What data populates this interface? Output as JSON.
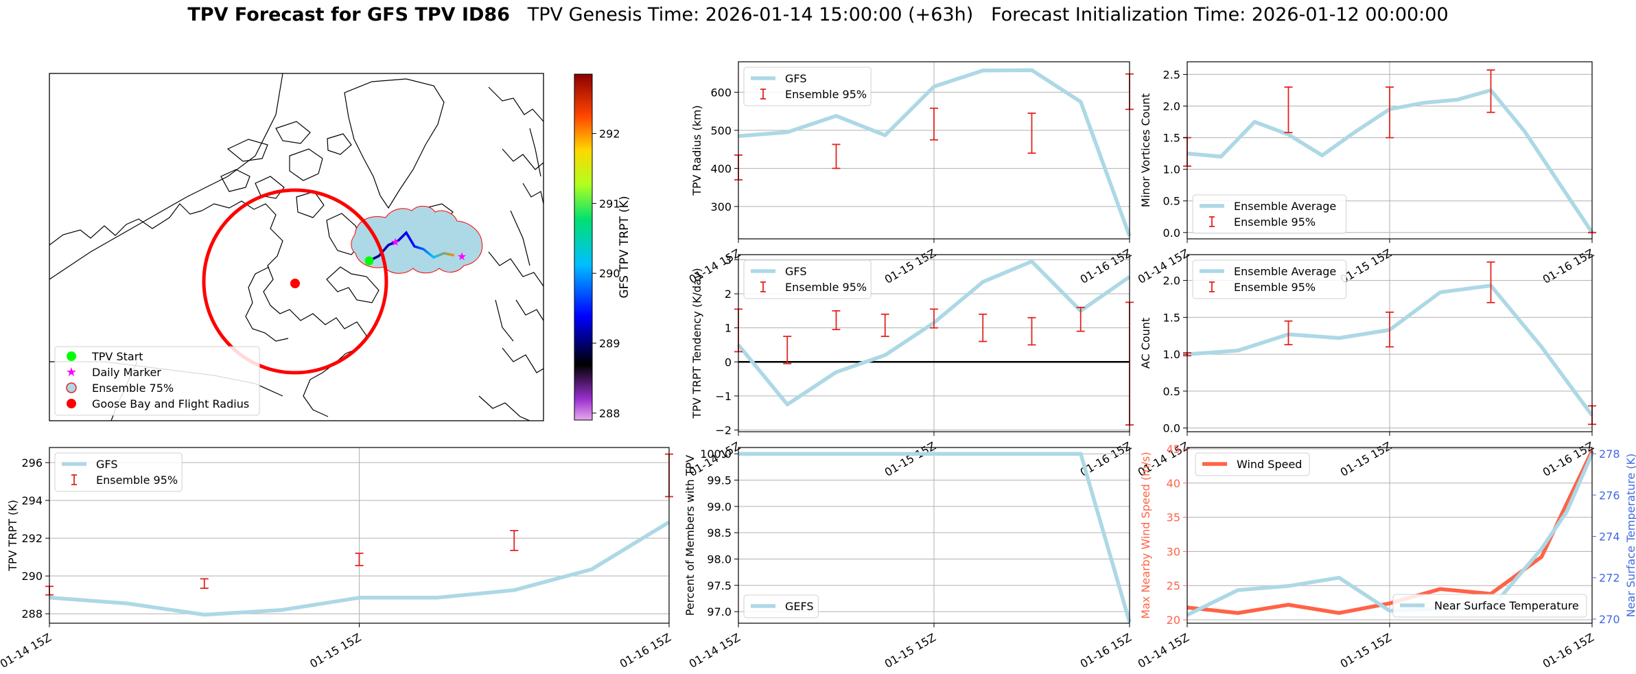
{
  "title": {
    "bold": "TPV Forecast for GFS TPV ID86",
    "genesis": "TPV Genesis Time: 2026-01-14 15:00:00 (+63h)",
    "init": "Forecast Initialization Time: 2026-01-12 00:00:00"
  },
  "colors": {
    "gfs": "#add8e6",
    "ensemble": "#e0251f",
    "wind": "#ff6347",
    "temp_axis": "#4169e1",
    "grid": "#b0b0b0"
  },
  "map": {
    "legend": [
      "TPV Start",
      "Daily Marker",
      "Ensemble 75%",
      "Goose Bay and Flight Radius"
    ],
    "legend_icons": [
      "green-circle",
      "magenta-star",
      "lightblue-circle-red-edge",
      "red-circle"
    ],
    "colorbar_label": "GFS TPV TRPT (K)",
    "colorbar_ticks": [
      288,
      289,
      290,
      291,
      292
    ],
    "colorbar_range": [
      287.9,
      292.85
    ]
  },
  "chart_data": [
    {
      "id": "radius",
      "type": "line",
      "ylabel": "TPV Radius (km)",
      "ylim": [
        215,
        680
      ],
      "yticks": [
        300,
        400,
        500,
        600
      ],
      "xlim": [
        0,
        48
      ],
      "xticks": [
        0,
        24,
        48
      ],
      "xticklabels": [
        "01-14 15Z",
        "01-15 15Z",
        "01-16 15Z"
      ],
      "grid": true,
      "legend_position": "upper-left",
      "series": [
        {
          "name": "GFS",
          "x": [
            0,
            6,
            12,
            18,
            24,
            30,
            36,
            42,
            48
          ],
          "values": [
            485,
            495,
            538,
            487,
            615,
            657,
            658,
            575,
            222
          ]
        }
      ],
      "errorbars": {
        "name": "Ensemble 95%",
        "x": [
          0,
          12,
          24,
          36,
          48
        ],
        "low": [
          370,
          400,
          475,
          440,
          555
        ],
        "high": [
          435,
          463,
          558,
          545,
          648
        ]
      }
    },
    {
      "id": "minor",
      "type": "line",
      "ylabel": "Minor Vortices Count",
      "ylim": [
        -0.1,
        2.7
      ],
      "yticks": [
        0.0,
        0.5,
        1.0,
        1.5,
        2.0,
        2.5
      ],
      "xlim": [
        0,
        48
      ],
      "xticks": [
        0,
        24,
        48
      ],
      "xticklabels": [
        "01-14 15Z",
        "01-15 15Z",
        "01-16 15Z"
      ],
      "grid": true,
      "legend_position": "lower-left",
      "series": [
        {
          "name": "Ensemble Average",
          "x": [
            0,
            4,
            8,
            12,
            16,
            20,
            24,
            28,
            32,
            36,
            40,
            44,
            48
          ],
          "values": [
            1.25,
            1.2,
            1.75,
            1.55,
            1.22,
            1.6,
            1.95,
            2.05,
            2.1,
            2.25,
            1.6,
            0.8,
            0.0
          ]
        }
      ],
      "errorbars": {
        "name": "Ensemble 95%",
        "x": [
          0,
          12,
          24,
          36,
          48
        ],
        "low": [
          1.05,
          1.58,
          1.5,
          1.9,
          0.0
        ],
        "high": [
          1.5,
          2.3,
          2.3,
          2.57,
          0.0
        ]
      }
    },
    {
      "id": "tendency",
      "type": "line",
      "ylabel": "TPV TRPT Tendency (K/day)",
      "ylim": [
        -2.05,
        3.15
      ],
      "yticks": [
        -2,
        -1,
        0,
        1,
        2,
        3
      ],
      "xlim": [
        0,
        48
      ],
      "xticks": [
        0,
        24,
        48
      ],
      "xticklabels": [
        "01-14 15Z",
        "01-15 15Z",
        "01-16 15Z"
      ],
      "grid": true,
      "zero_line": true,
      "legend_position": "upper-left",
      "series": [
        {
          "name": "GFS",
          "x": [
            0,
            6,
            12,
            18,
            24,
            30,
            36,
            42,
            48
          ],
          "values": [
            0.5,
            -1.25,
            -0.3,
            0.2,
            1.15,
            2.35,
            2.95,
            1.5,
            2.5
          ]
        }
      ],
      "errorbars": {
        "name": "Ensemble 95%",
        "x": [
          0,
          6,
          12,
          18,
          24,
          30,
          36,
          42,
          48
        ],
        "low": [
          0.3,
          -0.05,
          0.95,
          0.75,
          1.0,
          0.6,
          0.5,
          0.9,
          -1.85
        ],
        "high": [
          1.55,
          0.75,
          1.5,
          1.4,
          1.55,
          1.4,
          1.3,
          1.6,
          1.75
        ]
      }
    },
    {
      "id": "ac",
      "type": "line",
      "ylabel": "AC Count",
      "ylim": [
        -0.05,
        2.35
      ],
      "yticks": [
        0.0,
        0.5,
        1.0,
        1.5,
        2.0
      ],
      "xlim": [
        0,
        48
      ],
      "xticks": [
        0,
        24,
        48
      ],
      "xticklabels": [
        "01-14 15Z",
        "01-15 15Z",
        "01-16 15Z"
      ],
      "grid": true,
      "legend_position": "upper-left",
      "series": [
        {
          "name": "Ensemble Average",
          "x": [
            0,
            6,
            12,
            18,
            24,
            30,
            36,
            42,
            48
          ],
          "values": [
            1.0,
            1.05,
            1.27,
            1.22,
            1.33,
            1.84,
            1.93,
            1.1,
            0.17
          ]
        }
      ],
      "errorbars": {
        "name": "Ensemble 95%",
        "x": [
          0,
          12,
          24,
          36,
          48
        ],
        "low": [
          0.98,
          1.13,
          1.1,
          1.7,
          0.05
        ],
        "high": [
          1.02,
          1.45,
          1.57,
          2.25,
          0.3
        ]
      }
    },
    {
      "id": "trpt",
      "type": "line",
      "ylabel": "TPV TRPT (K)",
      "ylim": [
        287.5,
        296.8
      ],
      "yticks": [
        288,
        290,
        292,
        294,
        296
      ],
      "xlim": [
        0,
        48
      ],
      "xticks": [
        0,
        24,
        48
      ],
      "xticklabels": [
        "01-14 15Z",
        "01-15 15Z",
        "01-16 15Z"
      ],
      "grid": true,
      "legend_position": "upper-left",
      "series": [
        {
          "name": "GFS",
          "x": [
            0,
            6,
            12,
            18,
            24,
            30,
            36,
            42,
            48
          ],
          "values": [
            288.85,
            288.55,
            287.95,
            288.2,
            288.85,
            288.85,
            289.25,
            290.35,
            292.85
          ]
        }
      ],
      "errorbars": {
        "name": "Ensemble 95%",
        "x": [
          0,
          12,
          24,
          36,
          48
        ],
        "low": [
          289.0,
          289.35,
          290.55,
          291.35,
          294.2
        ],
        "high": [
          289.45,
          289.85,
          291.2,
          292.4,
          296.45
        ]
      }
    },
    {
      "id": "percent",
      "type": "line",
      "ylabel": "Percent of Members with TPV",
      "ylim": [
        96.78,
        100.12
      ],
      "yticks": [
        97.0,
        97.5,
        98.0,
        98.5,
        99.0,
        99.5,
        100.0
      ],
      "xlim": [
        0,
        48
      ],
      "xticks": [
        0,
        24,
        48
      ],
      "xticklabels": [
        "01-14 15Z",
        "01-15 15Z",
        "01-16 15Z"
      ],
      "grid": true,
      "legend_position": "lower-left",
      "series": [
        {
          "name": "GEFS",
          "x": [
            0,
            6,
            12,
            18,
            24,
            30,
            36,
            42,
            48
          ],
          "values": [
            100,
            100,
            100,
            100,
            100,
            100,
            100,
            100,
            96.8
          ]
        }
      ]
    },
    {
      "id": "wind_temp",
      "type": "line",
      "ylabel": "Max Nearby Wind Speed (m/s)",
      "ylim": [
        19.5,
        45.2
      ],
      "yticks": [
        20,
        25,
        30,
        35,
        40,
        45
      ],
      "y2label": "Near Surface Temperature (K)",
      "y2lim": [
        269.8,
        278.3
      ],
      "y2ticks": [
        270,
        272,
        274,
        276,
        278
      ],
      "xlim": [
        0,
        48
      ],
      "xticks": [
        0,
        24,
        48
      ],
      "xticklabels": [
        "01-14 15Z",
        "01-15 15Z",
        "01-16 15Z"
      ],
      "grid": true,
      "series": [
        {
          "name": "Wind Speed",
          "axis": "left",
          "x": [
            0,
            6,
            12,
            18,
            24,
            30,
            36,
            42,
            45,
            48
          ],
          "values": [
            21.8,
            21.0,
            22.2,
            21.0,
            22.4,
            24.5,
            23.8,
            29.2,
            37,
            44.7
          ]
        },
        {
          "name": "Near Surface Temperature",
          "axis": "right",
          "x": [
            0,
            6,
            12,
            18,
            24,
            30,
            36,
            42,
            45,
            48
          ],
          "values": [
            270.2,
            271.4,
            271.6,
            272.0,
            270.4,
            270.5,
            270.5,
            273.4,
            275.2,
            278.0
          ]
        }
      ]
    }
  ]
}
